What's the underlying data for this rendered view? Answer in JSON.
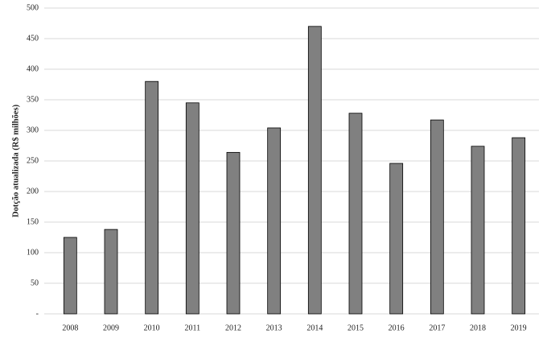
{
  "chart_data": {
    "type": "bar",
    "y_label": "Dotção atualizada (R$ milhões)",
    "categories": [
      "2008",
      "2009",
      "2010",
      "2011",
      "2012",
      "2013",
      "2014",
      "2015",
      "2016",
      "2017",
      "2018",
      "2019"
    ],
    "values": [
      125,
      138,
      380,
      345,
      264,
      304,
      470,
      328,
      246,
      317,
      274,
      288
    ],
    "color": "#808080",
    "ylim": [
      0,
      500
    ],
    "yticks": [
      {
        "value": 0,
        "label": "-"
      },
      50,
      100,
      150,
      200,
      250,
      300,
      350,
      400,
      450,
      500
    ],
    "grid": true
  }
}
